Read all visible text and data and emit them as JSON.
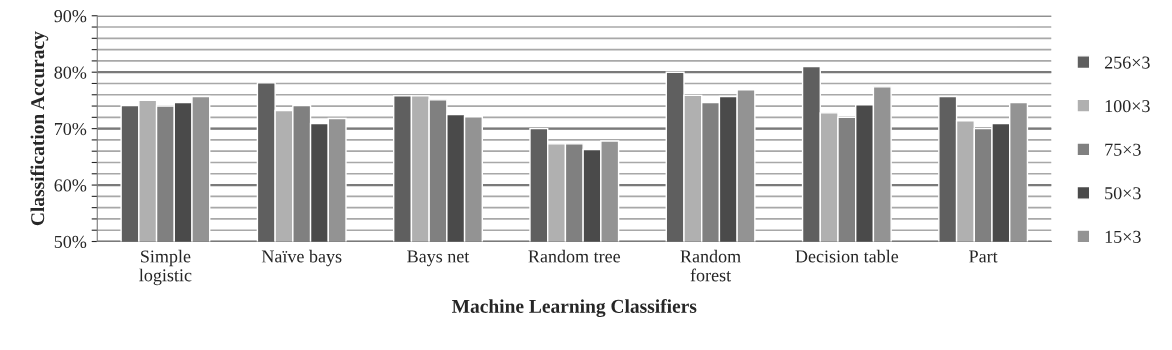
{
  "chart_data": {
    "type": "bar",
    "xlabel": "Machine Learning Classifiers",
    "ylabel": "Classification Accuracy",
    "categories": [
      "Simple\nlogistic",
      "Naïve bays",
      "Bays net",
      "Random tree",
      "Random\nforest",
      "Decision table",
      "Part"
    ],
    "series": [
      {
        "name": "256×3",
        "color": "#5f5f5f",
        "values": [
          74.1,
          78.1,
          75.8,
          70.0,
          80.0,
          81.0,
          75.7
        ]
      },
      {
        "name": "100×3",
        "color": "#b0b0b0",
        "values": [
          75.0,
          73.2,
          75.8,
          67.3,
          75.9,
          72.8,
          71.4
        ]
      },
      {
        "name": "75×3",
        "color": "#808080",
        "values": [
          74.0,
          74.1,
          75.1,
          67.3,
          74.6,
          72.0,
          70.0
        ]
      },
      {
        "name": "50×3",
        "color": "#4a4a4a",
        "values": [
          74.6,
          70.9,
          72.5,
          66.3,
          75.7,
          74.2,
          70.9
        ]
      },
      {
        "name": "15×3",
        "color": "#939393",
        "values": [
          75.7,
          71.8,
          72.1,
          67.8,
          76.9,
          77.4,
          74.6
        ]
      }
    ],
    "ylim": [
      50,
      90
    ],
    "yticks": [
      {
        "value": 50,
        "label": "50%"
      },
      {
        "value": 52,
        "label": null
      },
      {
        "value": 54,
        "label": null
      },
      {
        "value": 56,
        "label": null
      },
      {
        "value": 58,
        "label": null
      },
      {
        "value": 60,
        "label": "60%"
      },
      {
        "value": 62,
        "label": null
      },
      {
        "value": 64,
        "label": null
      },
      {
        "value": 66,
        "label": null
      },
      {
        "value": 68,
        "label": null
      },
      {
        "value": 70,
        "label": "70%"
      },
      {
        "value": 72,
        "label": null
      },
      {
        "value": 74,
        "label": null
      },
      {
        "value": 76,
        "label": null
      },
      {
        "value": 78,
        "label": null
      },
      {
        "value": 80,
        "label": "80%"
      },
      {
        "value": 82,
        "label": null
      },
      {
        "value": 84,
        "label": null
      },
      {
        "value": 86,
        "label": null
      },
      {
        "value": 88,
        "label": null
      },
      {
        "value": 90,
        "label": "90%"
      }
    ],
    "grid": "y",
    "legend": "right"
  }
}
